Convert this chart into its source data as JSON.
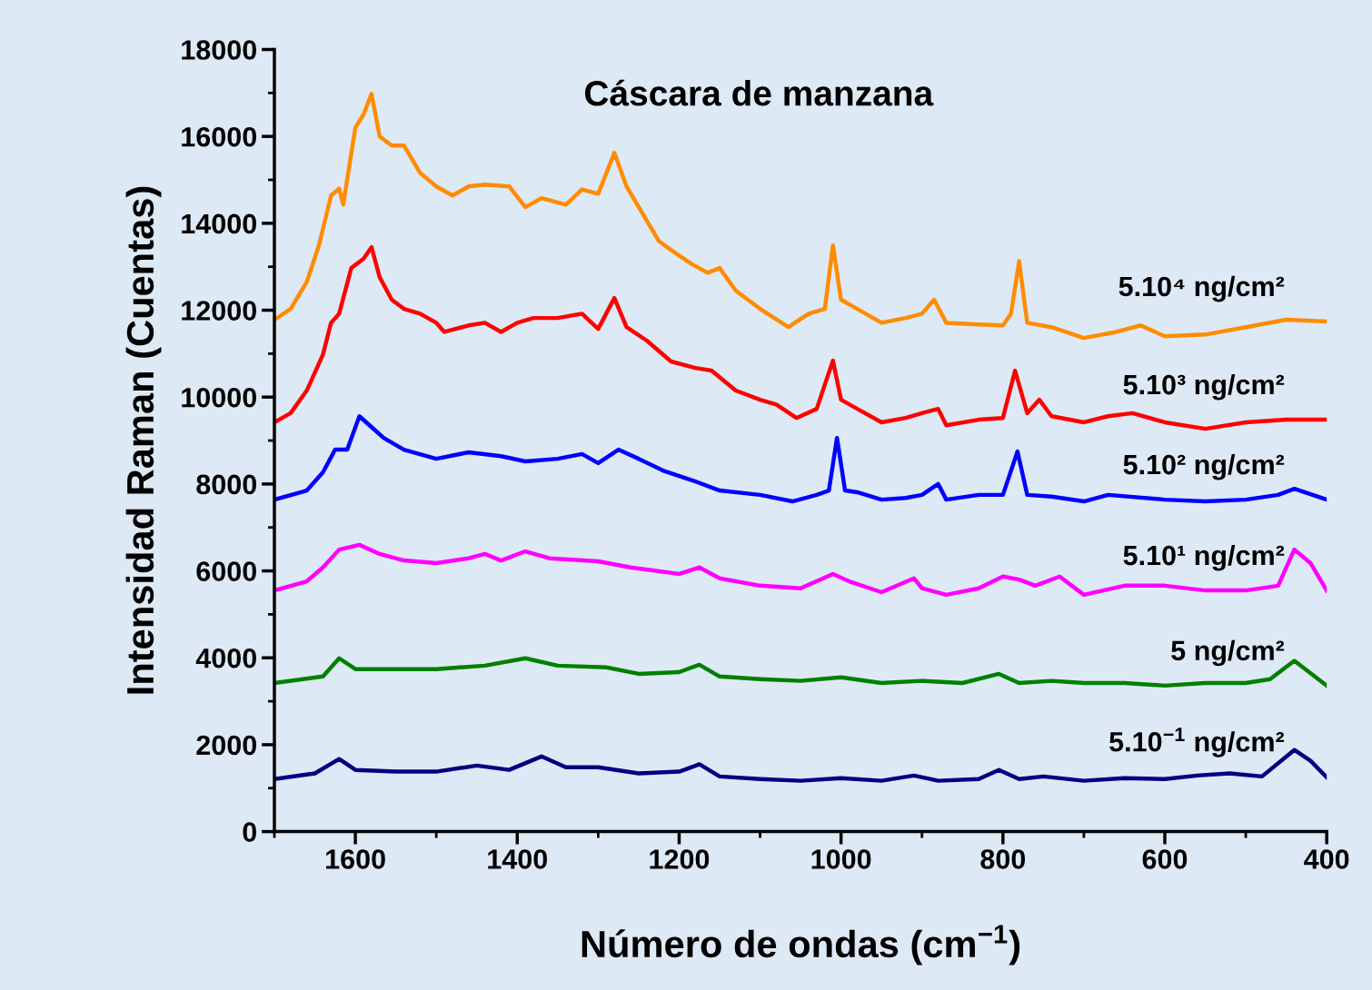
{
  "chart_data": {
    "type": "line",
    "title": "Cáscara de manzana",
    "xlabel": "Número de ondas (cm$^{−1}$)",
    "ylabel": "Intensidad Raman (Cuentas)",
    "xlim": [
      1700,
      400
    ],
    "xticks": [
      1600,
      1400,
      1200,
      1000,
      800,
      600,
      400
    ],
    "ylim": [
      0,
      18000
    ],
    "yticks": [
      0,
      2000,
      4000,
      6000,
      8000,
      10000,
      12000,
      14000,
      16000,
      18000
    ],
    "grid": false,
    "legend": false,
    "marker": "none",
    "line_style": "solid",
    "series": [
      {
        "name": "5.10⁴ ng/cm²",
        "color": "#ff8c00",
        "x": [
          1700,
          1680,
          1660,
          1645,
          1630,
          1620,
          1615,
          1600,
          1590,
          1580,
          1570,
          1555,
          1540,
          1520,
          1500,
          1480,
          1460,
          1440,
          1410,
          1390,
          1370,
          1340,
          1320,
          1300,
          1280,
          1265,
          1245,
          1225,
          1205,
          1185,
          1165,
          1150,
          1130,
          1100,
          1065,
          1040,
          1020,
          1010,
          1000,
          980,
          950,
          920,
          900,
          885,
          870,
          830,
          800,
          790,
          780,
          770,
          740,
          700,
          660,
          630,
          600,
          550,
          500,
          450,
          400
        ],
        "values": [
          11780,
          12030,
          12650,
          13490,
          14640,
          14800,
          14430,
          16200,
          16500,
          16980,
          16000,
          15790,
          15790,
          15160,
          14850,
          14640,
          14850,
          14890,
          14850,
          14370,
          14580,
          14430,
          14780,
          14680,
          15620,
          14850,
          14220,
          13590,
          13320,
          13070,
          12860,
          12970,
          12450,
          12030,
          11610,
          11920,
          12030,
          13490,
          12240,
          12030,
          11710,
          11820,
          11920,
          12240,
          11710,
          11670,
          11650,
          11920,
          13130,
          11710,
          11610,
          11360,
          11500,
          11650,
          11400,
          11440,
          11610,
          11780,
          11740
        ]
      },
      {
        "name": "5.10³ ng/cm²",
        "color": "#ff0000",
        "x": [
          1700,
          1680,
          1660,
          1640,
          1630,
          1620,
          1605,
          1590,
          1580,
          1570,
          1555,
          1540,
          1520,
          1500,
          1490,
          1460,
          1440,
          1420,
          1400,
          1380,
          1350,
          1320,
          1300,
          1280,
          1265,
          1240,
          1210,
          1180,
          1160,
          1130,
          1100,
          1080,
          1055,
          1030,
          1010,
          1000,
          980,
          950,
          920,
          900,
          880,
          870,
          830,
          800,
          785,
          770,
          755,
          740,
          700,
          670,
          640,
          600,
          550,
          500,
          450,
          400
        ],
        "values": [
          9420,
          9630,
          10150,
          10980,
          11710,
          11920,
          12970,
          13180,
          13450,
          12760,
          12240,
          12030,
          11920,
          11710,
          11500,
          11650,
          11710,
          11500,
          11710,
          11820,
          11820,
          11920,
          11570,
          12280,
          11610,
          11300,
          10820,
          10670,
          10610,
          10150,
          9940,
          9830,
          9520,
          9730,
          10840,
          9940,
          9730,
          9420,
          9520,
          9630,
          9730,
          9350,
          9480,
          9520,
          10610,
          9630,
          9940,
          9560,
          9420,
          9560,
          9630,
          9420,
          9270,
          9420,
          9480,
          9480
        ]
      },
      {
        "name": "5.10² ng/cm²",
        "color": "#0000ff",
        "x": [
          1700,
          1660,
          1640,
          1625,
          1610,
          1595,
          1580,
          1565,
          1540,
          1500,
          1460,
          1420,
          1390,
          1350,
          1320,
          1300,
          1275,
          1250,
          1220,
          1180,
          1150,
          1100,
          1060,
          1030,
          1015,
          1005,
          995,
          980,
          950,
          920,
          900,
          880,
          870,
          830,
          800,
          782,
          770,
          740,
          700,
          670,
          600,
          550,
          500,
          460,
          440,
          400
        ],
        "values": [
          7640,
          7850,
          8270,
          8790,
          8790,
          9560,
          9310,
          9060,
          8790,
          8580,
          8730,
          8640,
          8520,
          8580,
          8690,
          8480,
          8790,
          8580,
          8310,
          8060,
          7850,
          7750,
          7600,
          7750,
          7850,
          9060,
          7850,
          7810,
          7640,
          7680,
          7750,
          8000,
          7640,
          7750,
          7750,
          8750,
          7750,
          7710,
          7600,
          7750,
          7640,
          7600,
          7640,
          7750,
          7890,
          7640
        ]
      },
      {
        "name": "5.10¹ ng/cm²",
        "color": "#ff00ff",
        "x": [
          1700,
          1660,
          1640,
          1620,
          1595,
          1570,
          1540,
          1500,
          1460,
          1440,
          1420,
          1390,
          1360,
          1300,
          1260,
          1200,
          1175,
          1150,
          1100,
          1050,
          1010,
          990,
          950,
          910,
          900,
          870,
          830,
          800,
          780,
          760,
          730,
          700,
          650,
          600,
          550,
          500,
          460,
          440,
          420,
          400
        ],
        "values": [
          5550,
          5760,
          6080,
          6490,
          6600,
          6390,
          6240,
          6180,
          6290,
          6390,
          6240,
          6450,
          6290,
          6220,
          6080,
          5930,
          6080,
          5830,
          5660,
          5600,
          5930,
          5760,
          5510,
          5830,
          5600,
          5450,
          5600,
          5870,
          5800,
          5660,
          5870,
          5450,
          5660,
          5660,
          5550,
          5550,
          5660,
          6490,
          6180,
          5550
        ]
      },
      {
        "name": "5 ng/cm²",
        "color": "#008000",
        "x": [
          1700,
          1640,
          1620,
          1600,
          1550,
          1500,
          1440,
          1390,
          1350,
          1290,
          1250,
          1200,
          1175,
          1150,
          1100,
          1050,
          1000,
          950,
          900,
          850,
          805,
          780,
          740,
          700,
          650,
          600,
          550,
          500,
          470,
          440,
          400
        ],
        "values": [
          3420,
          3570,
          3990,
          3740,
          3740,
          3740,
          3820,
          3990,
          3820,
          3780,
          3630,
          3670,
          3840,
          3570,
          3510,
          3470,
          3550,
          3420,
          3470,
          3420,
          3630,
          3420,
          3470,
          3420,
          3420,
          3360,
          3420,
          3420,
          3510,
          3930,
          3360
        ]
      },
      {
        "name": "5.10$^{−1}$ ng/cm²",
        "color": "#000080",
        "x": [
          1700,
          1650,
          1620,
          1600,
          1550,
          1500,
          1450,
          1410,
          1370,
          1340,
          1300,
          1250,
          1200,
          1175,
          1150,
          1100,
          1050,
          1000,
          950,
          910,
          880,
          830,
          805,
          780,
          750,
          700,
          650,
          600,
          560,
          520,
          480,
          440,
          420,
          400
        ],
        "values": [
          1210,
          1340,
          1670,
          1420,
          1380,
          1380,
          1520,
          1420,
          1730,
          1480,
          1480,
          1340,
          1380,
          1550,
          1270,
          1210,
          1170,
          1230,
          1170,
          1290,
          1170,
          1210,
          1420,
          1210,
          1270,
          1170,
          1230,
          1210,
          1290,
          1340,
          1270,
          1880,
          1630,
          1250
        ]
      }
    ]
  }
}
